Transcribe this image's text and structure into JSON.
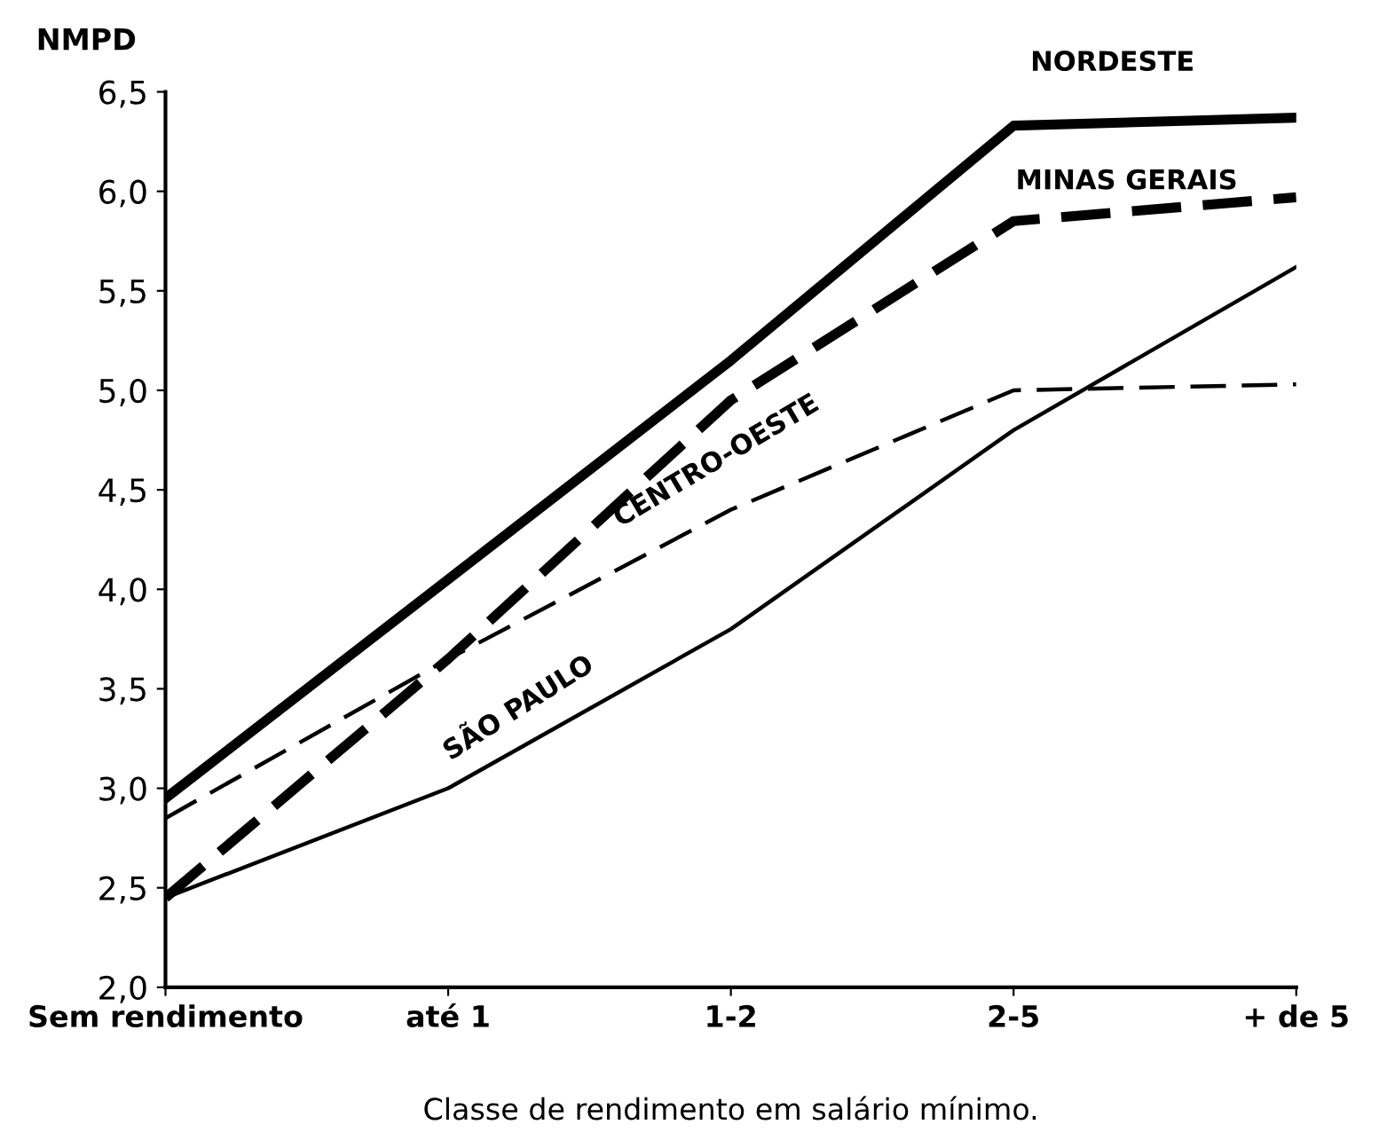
{
  "chart_data": {
    "type": "line",
    "ylabel": "NMPD",
    "xlabel": "Classe de rendimento em salário mínimo.",
    "categories": [
      "Sem rendimento",
      "até 1",
      "1-2",
      "2-5",
      "+ de 5"
    ],
    "series": [
      {
        "name": "NORDESTE",
        "color": "#000000",
        "line_style": "solid",
        "values": [
          2.95,
          4.05,
          5.15,
          6.33,
          6.37
        ]
      },
      {
        "name": "MINAS GERAIS",
        "color": "#000000",
        "line_style": "dashed",
        "values": [
          2.45,
          3.65,
          4.95,
          5.85,
          5.97
        ]
      },
      {
        "name": "CENTRO-OESTE",
        "color": "#000000",
        "line_style": "dashed",
        "values": [
          2.85,
          3.65,
          4.4,
          5.0,
          5.03
        ]
      },
      {
        "name": "SÃO PAULO",
        "color": "#000000",
        "line_style": "solid",
        "values": [
          2.45,
          3.0,
          3.8,
          4.8,
          5.62
        ]
      }
    ],
    "ylim": [
      2.0,
      6.5
    ],
    "yticks": [
      {
        "value": 2.0,
        "label": "2,0"
      },
      {
        "value": 2.5,
        "label": "2,5"
      },
      {
        "value": 3.0,
        "label": "3,0"
      },
      {
        "value": 3.5,
        "label": "3,5"
      },
      {
        "value": 4.0,
        "label": "4,0"
      },
      {
        "value": 4.5,
        "label": "4,5"
      },
      {
        "value": 5.0,
        "label": "5,0"
      },
      {
        "value": 5.5,
        "label": "5,5"
      },
      {
        "value": 6.0,
        "label": "6,0"
      },
      {
        "value": 6.5,
        "label": "6,5"
      }
    ],
    "grid": false,
    "legend": false,
    "marker": "none"
  }
}
